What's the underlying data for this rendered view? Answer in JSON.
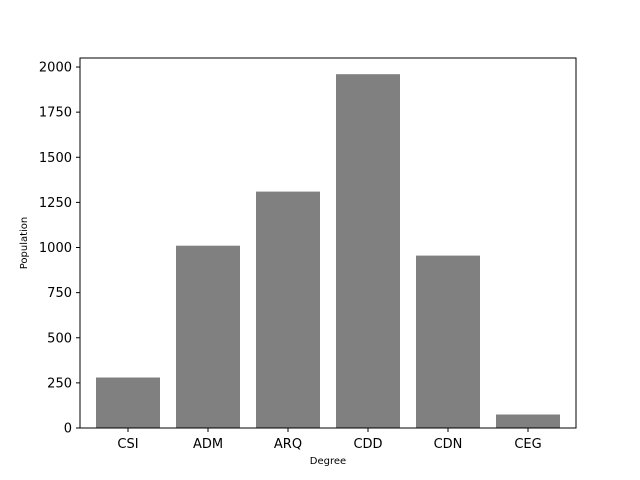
{
  "chart_data": {
    "type": "bar",
    "title": "",
    "xlabel": "Degree",
    "ylabel": "Population",
    "categories": [
      "CSI",
      "ADM",
      "ARQ",
      "CDD",
      "CDN",
      "CEG"
    ],
    "values": [
      280,
      1010,
      1310,
      1960,
      955,
      75
    ],
    "ylim": [
      0,
      2050
    ],
    "yticks": [
      0,
      250,
      500,
      750,
      1000,
      1250,
      1500,
      1750,
      2000
    ],
    "bar_color": "#808080",
    "grid": false,
    "legend": "none"
  }
}
